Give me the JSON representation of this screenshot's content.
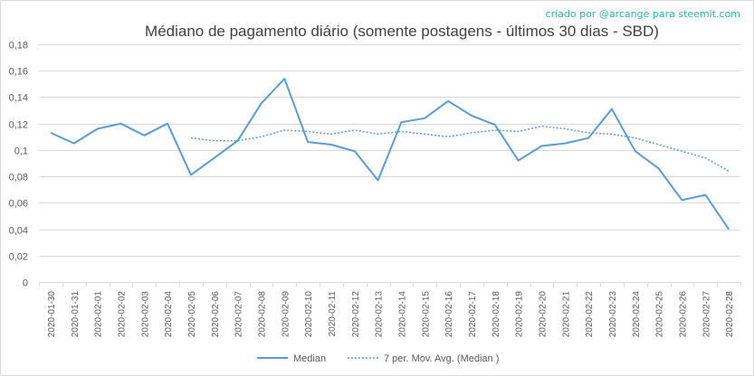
{
  "credit": "criado por @arcange para steemit.com",
  "colors": {
    "series": "#5b9bd5",
    "grid": "#d9d9d9",
    "text": "#595959",
    "credit": "#2bb3a3",
    "title": "#404040"
  },
  "chart_data": {
    "type": "line",
    "title": "Médiano de pagamento diário (somente postagens - últimos 30 dias - SBD)",
    "xlabel": "",
    "ylabel": "",
    "ylim": [
      0,
      0.18
    ],
    "yticks": [
      "0",
      "0,02",
      "0,04",
      "0,06",
      "0,08",
      "0,1",
      "0,12",
      "0,14",
      "0,16",
      "0,18"
    ],
    "grid": true,
    "legend_position": "bottom",
    "x": [
      "2020-01-30",
      "2020-01-31",
      "2020-02-01",
      "2020-02-02",
      "2020-02-03",
      "2020-02-04",
      "2020-02-05",
      "2020-02-06",
      "2020-02-07",
      "2020-02-08",
      "2020-02-09",
      "2020-02-10",
      "2020-02-11",
      "2020-02-12",
      "2020-02-13",
      "2020-02-14",
      "2020-02-15",
      "2020-02-16",
      "2020-02-17",
      "2020-02-18",
      "2020-02-19",
      "2020-02-20",
      "2020-02-21",
      "2020-02-22",
      "2020-02-23",
      "2020-02-24",
      "2020-02-25",
      "2020-02-26",
      "2020-02-27",
      "2020-02-28"
    ],
    "series": [
      {
        "name": "Median",
        "style": "solid",
        "values": [
          0.113,
          0.105,
          0.116,
          0.12,
          0.111,
          0.12,
          0.081,
          0.094,
          0.107,
          0.135,
          0.154,
          0.106,
          0.104,
          0.099,
          0.077,
          0.121,
          0.124,
          0.137,
          0.126,
          0.119,
          0.092,
          0.103,
          0.105,
          0.109,
          0.131,
          0.099,
          0.086,
          0.062,
          0.066,
          0.04
        ]
      },
      {
        "name": "7 per. Mov. Avg. (Median )",
        "style": "dotted",
        "values": [
          null,
          null,
          null,
          null,
          null,
          null,
          0.109,
          0.107,
          0.107,
          0.11,
          0.115,
          0.114,
          0.112,
          0.115,
          0.112,
          0.114,
          0.112,
          0.11,
          0.113,
          0.115,
          0.114,
          0.118,
          0.116,
          0.113,
          0.112,
          0.109,
          0.104,
          0.099,
          0.094,
          0.084
        ]
      }
    ]
  }
}
